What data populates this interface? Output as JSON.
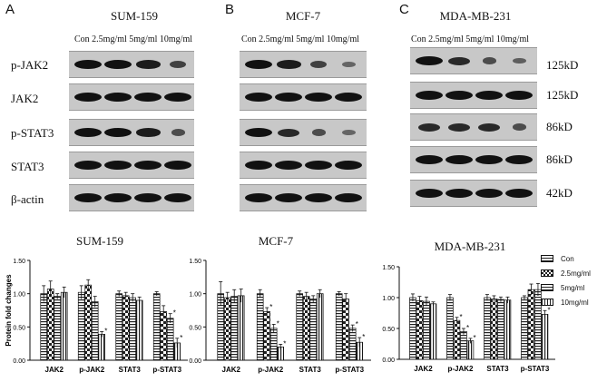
{
  "panels": [
    {
      "letter": "A",
      "title": "SUM-159",
      "conc": "Con 2.5mg/ml 5mg/ml 10mg/ml"
    },
    {
      "letter": "B",
      "title": "MCF-7",
      "conc": "Con 2.5mg/ml 5mg/ml 10mg/ml"
    },
    {
      "letter": "C",
      "title": "MDA-MB-231",
      "conc": "Con 2.5mg/ml 5mg/ml 10mg/ml"
    }
  ],
  "row_labels": [
    "p-JAK2",
    "JAK2",
    "p-STAT3",
    "STAT3",
    "β-actin"
  ],
  "kd_labels": [
    "125kD",
    "125kD",
    "86kD",
    "86kD",
    "42kD"
  ],
  "legend": [
    "Con",
    "2.5mg/ml",
    "5mg/ml",
    "10mg/ml"
  ],
  "chart_data": [
    {
      "type": "bar",
      "title": "SUM-159",
      "ylabel": "Protein fold changes",
      "categories": [
        "JAK2",
        "p-JAK2",
        "STAT3",
        "p-STAT3"
      ],
      "ylim": [
        0,
        1.5
      ],
      "yticks": [
        "0.00",
        "0.50",
        "1.00",
        "1.50"
      ],
      "series": [
        {
          "name": "Con",
          "values": [
            1.0,
            1.02,
            1.0,
            1.0
          ],
          "errors": [
            0.12,
            0.1,
            0.04,
            0.03
          ],
          "star": [
            false,
            false,
            false,
            false
          ]
        },
        {
          "name": "2.5mg/ml",
          "values": [
            1.07,
            1.13,
            0.97,
            0.73
          ],
          "errors": [
            0.12,
            0.08,
            0.05,
            0.09
          ],
          "star": [
            false,
            false,
            false,
            false
          ]
        },
        {
          "name": "5mg/ml",
          "values": [
            0.96,
            0.88,
            0.94,
            0.63
          ],
          "errors": [
            0.04,
            0.08,
            0.06,
            0.07
          ],
          "star": [
            false,
            false,
            false,
            true
          ]
        },
        {
          "name": "10mg/ml",
          "values": [
            1.02,
            0.39,
            0.9,
            0.26
          ],
          "errors": [
            0.08,
            0.04,
            0.05,
            0.07
          ],
          "star": [
            false,
            true,
            false,
            true
          ]
        }
      ]
    },
    {
      "type": "bar",
      "title": "MCF-7",
      "ylabel": "",
      "categories": [
        "JAK2",
        "p-JAK2",
        "STAT3",
        "p-STAT3"
      ],
      "ylim": [
        0,
        1.5
      ],
      "yticks": [
        "0.00",
        "0.50",
        "1.00",
        "1.50"
      ],
      "series": [
        {
          "name": "Con",
          "values": [
            1.0,
            1.0,
            1.0,
            1.0
          ],
          "errors": [
            0.18,
            0.06,
            0.04,
            0.03
          ],
          "star": [
            false,
            false,
            false,
            false
          ]
        },
        {
          "name": "2.5mg/ml",
          "values": [
            0.94,
            0.73,
            0.96,
            0.92
          ],
          "errors": [
            0.08,
            0.06,
            0.06,
            0.08
          ],
          "star": [
            false,
            true,
            false,
            false
          ]
        },
        {
          "name": "5mg/ml",
          "values": [
            0.96,
            0.48,
            0.92,
            0.48
          ],
          "errors": [
            0.1,
            0.06,
            0.05,
            0.05
          ],
          "star": [
            false,
            true,
            false,
            true
          ]
        },
        {
          "name": "10mg/ml",
          "values": [
            0.97,
            0.2,
            1.0,
            0.27
          ],
          "errors": [
            0.1,
            0.04,
            0.06,
            0.07
          ],
          "star": [
            false,
            true,
            false,
            true
          ]
        }
      ]
    },
    {
      "type": "bar",
      "title": "MDA-MB-231",
      "ylabel": "",
      "categories": [
        "JAK2",
        "p-JAK2",
        "STAT3",
        "p-STAT3"
      ],
      "ylim": [
        0,
        1.5
      ],
      "yticks": [
        "0.00",
        "0.50",
        "1.00",
        "1.50"
      ],
      "series": [
        {
          "name": "Con",
          "values": [
            1.0,
            1.0,
            1.0,
            1.0
          ],
          "errors": [
            0.06,
            0.05,
            0.05,
            0.03
          ],
          "star": [
            false,
            false,
            false,
            false
          ]
        },
        {
          "name": "2.5mg/ml",
          "values": [
            0.95,
            0.63,
            0.98,
            1.13
          ],
          "errors": [
            0.07,
            0.05,
            0.05,
            0.09
          ],
          "star": [
            false,
            true,
            false,
            false
          ]
        },
        {
          "name": "5mg/ml",
          "values": [
            0.94,
            0.45,
            0.97,
            1.13
          ],
          "errors": [
            0.07,
            0.05,
            0.04,
            0.1
          ],
          "star": [
            false,
            true,
            false,
            false
          ]
        },
        {
          "name": "10mg/ml",
          "values": [
            0.9,
            0.3,
            0.96,
            0.73
          ],
          "errors": [
            0.03,
            0.04,
            0.05,
            0.06
          ],
          "star": [
            false,
            true,
            false,
            true
          ]
        }
      ]
    }
  ]
}
